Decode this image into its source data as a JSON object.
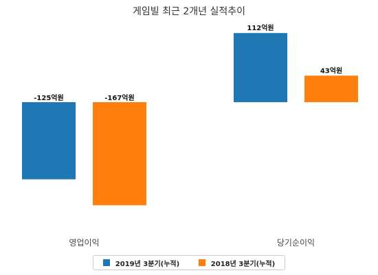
{
  "chart_data": {
    "type": "bar",
    "title": "게임빌 최근 2개년 실적추이",
    "categories": [
      "영업이익",
      "당기순이익"
    ],
    "series": [
      {
        "name": "2019년 3분기(누적)",
        "color": "#1f77b4",
        "values": [
          -125,
          112
        ],
        "labels": [
          "-125억원",
          "112억원"
        ]
      },
      {
        "name": "2018년 3분기(누적)",
        "color": "#ff7f0e",
        "values": [
          -167,
          43
        ],
        "labels": [
          "-167억원",
          "43억원"
        ]
      }
    ],
    "ylim": [
      -167,
      112
    ],
    "grid": false,
    "legend_position": "bottom"
  }
}
